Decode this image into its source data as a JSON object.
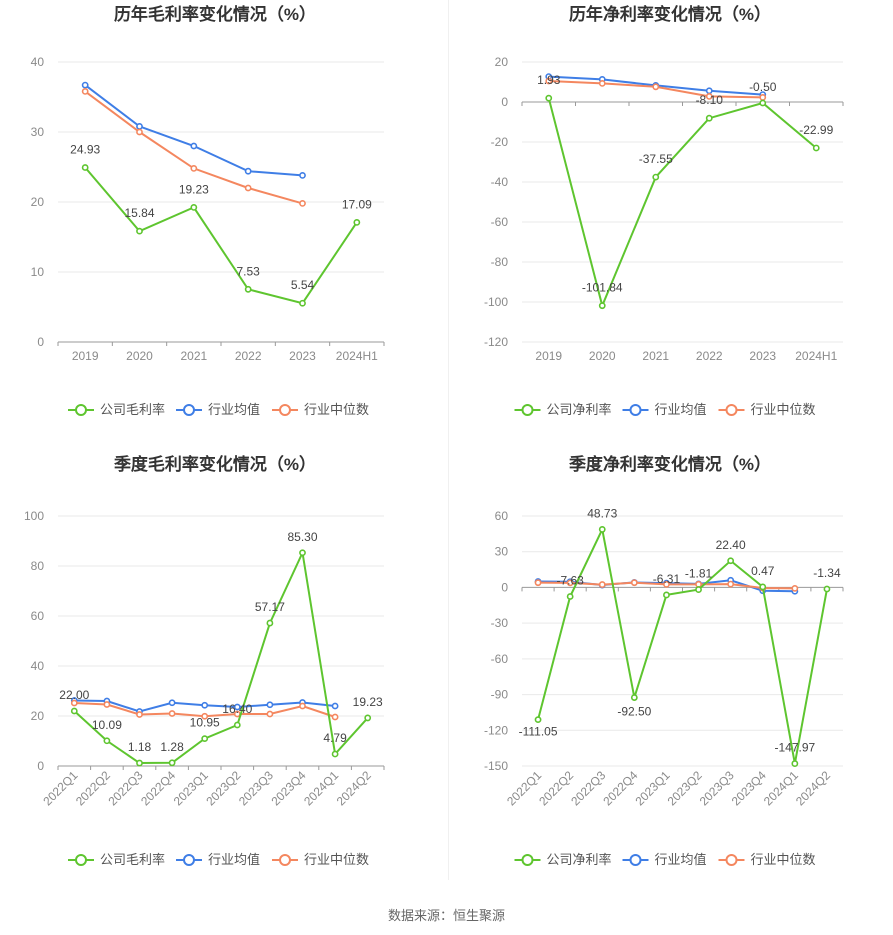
{
  "source": "数据来源：恒生聚源",
  "colors": {
    "company": "#5ec52f",
    "industry_avg": "#3f7ee6",
    "industry_median": "#f4875f",
    "grid": "#e9e9e9",
    "axis_text": "#8a8a8a",
    "label_text": "#444444"
  },
  "chart_data": [
    {
      "type": "line",
      "title": "历年毛利率变化情况（%）",
      "categories": [
        "2019",
        "2020",
        "2021",
        "2022",
        "2023",
        "2024H1"
      ],
      "ylim": [
        0,
        40
      ],
      "yticks": [
        0,
        10,
        20,
        30,
        40
      ],
      "rotate_x_labels": false,
      "grid": true,
      "legend_position": "bottom",
      "series": [
        {
          "name": "公司毛利率",
          "role": "company",
          "values": [
            24.93,
            15.84,
            19.23,
            7.53,
            5.54,
            17.09
          ],
          "labels": [
            "24.93",
            "15.84",
            "19.23",
            "7.53",
            "5.54",
            "17.09"
          ]
        },
        {
          "name": "行业均值",
          "role": "industry_avg",
          "values": [
            36.7,
            30.8,
            28.0,
            24.4,
            23.8,
            null
          ]
        },
        {
          "name": "行业中位数",
          "role": "industry_median",
          "values": [
            35.8,
            30.0,
            24.8,
            22.0,
            19.8,
            null
          ]
        }
      ]
    },
    {
      "type": "line",
      "title": "历年净利率变化情况（%）",
      "categories": [
        "2019",
        "2020",
        "2021",
        "2022",
        "2023",
        "2024H1"
      ],
      "ylim": [
        -120,
        20
      ],
      "yticks": [
        -120,
        -100,
        -80,
        -60,
        -40,
        -20,
        0,
        20
      ],
      "rotate_x_labels": false,
      "grid": true,
      "legend_position": "bottom",
      "series": [
        {
          "name": "公司净利率",
          "role": "company",
          "values": [
            1.93,
            -101.84,
            -37.55,
            -8.1,
            -0.5,
            -22.99
          ],
          "labels": [
            "1.93",
            "-101.84",
            "-37.55",
            "-8.10",
            "-0.50",
            "-22.99"
          ]
        },
        {
          "name": "行业均值",
          "role": "industry_avg",
          "values": [
            12.7,
            11.3,
            8.3,
            5.6,
            3.7,
            null
          ]
        },
        {
          "name": "行业中位数",
          "role": "industry_median",
          "values": [
            10.5,
            9.3,
            7.6,
            2.8,
            2.3,
            null
          ]
        }
      ]
    },
    {
      "type": "line",
      "title": "季度毛利率变化情况（%）",
      "categories": [
        "2022Q1",
        "2022Q2",
        "2022Q3",
        "2022Q4",
        "2023Q1",
        "2023Q2",
        "2023Q3",
        "2023Q4",
        "2024Q1",
        "2024Q2"
      ],
      "ylim": [
        0,
        100
      ],
      "yticks": [
        0,
        20,
        40,
        60,
        80,
        100
      ],
      "rotate_x_labels": true,
      "grid": true,
      "legend_position": "bottom",
      "series": [
        {
          "name": "公司毛利率",
          "role": "company",
          "values": [
            22.0,
            10.09,
            1.18,
            1.28,
            10.95,
            16.4,
            57.17,
            85.3,
            4.79,
            19.23
          ],
          "labels": [
            "22.00",
            "10.09",
            "1.18",
            "1.28",
            "10.95",
            "16.40",
            "57.17",
            "85.30",
            "4.79",
            "19.23"
          ]
        },
        {
          "name": "行业均值",
          "role": "industry_avg",
          "values": [
            26.2,
            26.0,
            21.8,
            25.3,
            24.3,
            23.6,
            24.5,
            25.4,
            24.0,
            null
          ]
        },
        {
          "name": "行业中位数",
          "role": "industry_median",
          "values": [
            25.2,
            24.6,
            20.6,
            21.0,
            19.9,
            20.8,
            20.8,
            24.0,
            19.6,
            null
          ]
        }
      ]
    },
    {
      "type": "line",
      "title": "季度净利率变化情况（%）",
      "categories": [
        "2022Q1",
        "2022Q2",
        "2022Q3",
        "2022Q4",
        "2023Q1",
        "2023Q2",
        "2023Q3",
        "2023Q4",
        "2024Q1",
        "2024Q2"
      ],
      "ylim": [
        -150,
        60
      ],
      "yticks": [
        -150,
        -120,
        -90,
        -60,
        -30,
        0,
        30,
        60
      ],
      "rotate_x_labels": true,
      "grid": true,
      "legend_position": "bottom",
      "series": [
        {
          "name": "公司净利率",
          "role": "company",
          "values": [
            -111.05,
            -7.63,
            48.73,
            -92.5,
            -6.31,
            -1.81,
            22.4,
            0.47,
            -147.97,
            -1.34
          ],
          "labels": [
            "-111.05",
            "-7.63",
            "48.73",
            "-92.50",
            "-6.31",
            "-1.81",
            "22.40",
            "0.47",
            "-147.97",
            "-1.34"
          ]
        },
        {
          "name": "行业均值",
          "role": "industry_avg",
          "values": [
            5.0,
            4.8,
            2.0,
            4.2,
            3.6,
            3.0,
            6.0,
            -2.8,
            -3.2,
            null
          ]
        },
        {
          "name": "行业中位数",
          "role": "industry_median",
          "values": [
            4.0,
            3.8,
            2.4,
            4.0,
            2.6,
            2.6,
            2.8,
            -0.5,
            -0.8,
            null
          ]
        }
      ]
    }
  ]
}
